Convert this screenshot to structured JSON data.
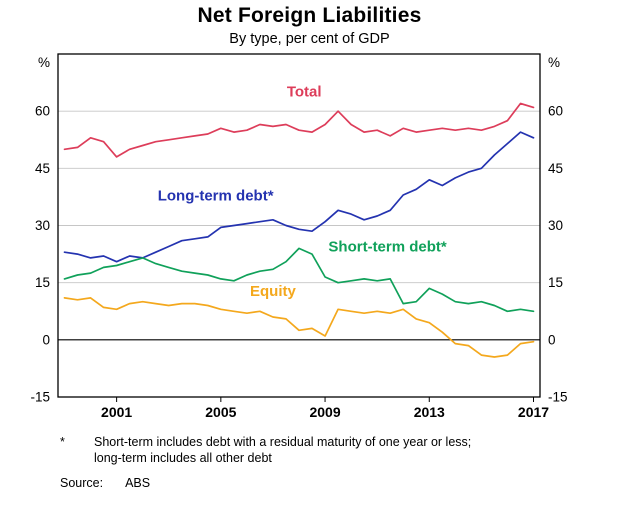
{
  "title": "Net Foreign Liabilities",
  "subtitle": "By type, per cent of GDP",
  "footnote": {
    "marker": "*",
    "line1": "Short-term includes debt with a residual maturity of one year or less;",
    "line2": "long-term includes all other debt"
  },
  "source_label": "Source:",
  "source_value": "ABS",
  "axis": {
    "unit_left": "%",
    "unit_right": "%",
    "y_ticks": [
      60,
      45,
      30,
      15,
      0,
      -15
    ],
    "x_ticks": [
      2001,
      2005,
      2009,
      2013,
      2017
    ],
    "ylim": [
      -15,
      75
    ],
    "xlim": [
      1998.75,
      2017.25
    ],
    "grid_color": "#c6c6c6",
    "zero_line_color": "#000000",
    "border_color": "#000000"
  },
  "chart_data": {
    "type": "line",
    "title": "Net Foreign Liabilities",
    "subtitle": "By type, per cent of GDP",
    "xlabel": "",
    "ylabel": "per cent of GDP",
    "xlim": [
      1998.75,
      2017.25
    ],
    "ylim": [
      -15,
      75
    ],
    "grid": true,
    "legend_position": "inline-labels",
    "x": [
      1999,
      1999.5,
      2000,
      2000.5,
      2001,
      2001.5,
      2002,
      2002.5,
      2003,
      2003.5,
      2004,
      2004.5,
      2005,
      2005.5,
      2006,
      2006.5,
      2007,
      2007.5,
      2008,
      2008.5,
      2009,
      2009.5,
      2010,
      2010.5,
      2011,
      2011.5,
      2012,
      2012.5,
      2013,
      2013.5,
      2014,
      2014.5,
      2015,
      2015.5,
      2016,
      2016.5,
      2017
    ],
    "series": [
      {
        "name": "Total",
        "color": "#dd3d5a",
        "label": {
          "text": "Total",
          "x": 2008.2,
          "y": 63.8
        },
        "values": [
          50,
          50.5,
          53,
          52,
          48,
          50,
          51,
          52,
          52.5,
          53,
          53.5,
          54,
          55.5,
          54.5,
          55,
          56.5,
          56,
          56.5,
          55,
          54.5,
          56.5,
          60,
          56.5,
          54.5,
          55,
          53.5,
          55.5,
          54.5,
          55,
          55.5,
          55,
          55.5,
          55,
          56,
          57.5,
          62,
          61
        ]
      },
      {
        "name": "Long-term debt",
        "color": "#2433b0",
        "label": {
          "text": "Long-term debt*",
          "x": 2004.8,
          "y": 36.5
        },
        "values": [
          23,
          22.5,
          21.5,
          22,
          20.5,
          22,
          21.5,
          23,
          24.5,
          26,
          26.5,
          27,
          29.5,
          30,
          30.5,
          31,
          31.5,
          30,
          29,
          28.5,
          31,
          34,
          33,
          31.5,
          32.5,
          34,
          38,
          39.5,
          42,
          40.5,
          42.5,
          44,
          45,
          48.5,
          51.5,
          54.5,
          53
        ]
      },
      {
        "name": "Short-term debt",
        "color": "#10a15a",
        "label": {
          "text": "Short-term debt*",
          "x": 2011.4,
          "y": 23.2
        },
        "values": [
          16,
          17,
          17.5,
          19,
          19.5,
          20.5,
          21.5,
          20,
          19,
          18,
          17.5,
          17,
          16,
          15.5,
          17,
          18,
          18.5,
          20.5,
          24,
          22.5,
          16.5,
          15,
          15.5,
          16,
          15.5,
          16,
          9.5,
          10,
          13.5,
          12,
          10,
          9.5,
          10,
          9,
          7.5,
          8,
          7.5
        ]
      },
      {
        "name": "Equity",
        "color": "#f4a81d",
        "label": {
          "text": "Equity",
          "x": 2007.0,
          "y": 11.5
        },
        "values": [
          11,
          10.5,
          11,
          8.5,
          8,
          9.5,
          10,
          9.5,
          9,
          9.5,
          9.5,
          9,
          8,
          7.5,
          7,
          7.5,
          6,
          5.5,
          2.5,
          3,
          1,
          8,
          7.5,
          7,
          7.5,
          7,
          8,
          5.5,
          4.5,
          2,
          -1,
          -1.5,
          -4,
          -4.5,
          -4,
          -1,
          -0.5
        ]
      }
    ]
  }
}
